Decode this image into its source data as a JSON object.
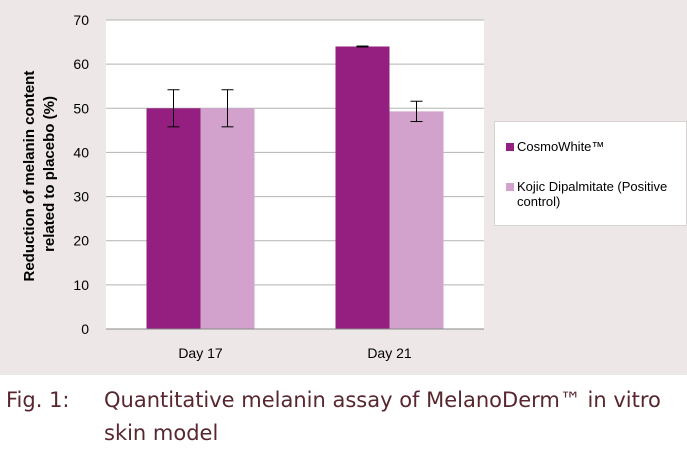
{
  "chart_data": {
    "type": "bar",
    "categories": [
      "Day 17",
      "Day 21"
    ],
    "series": [
      {
        "name": "CosmoWhite™",
        "color": "#951e81",
        "values": [
          50,
          64
        ],
        "error": [
          4.2,
          0.1
        ]
      },
      {
        "name": "Kojic Dipalmitate (Positive control)",
        "color": "#d2a2cd",
        "values": [
          50,
          49.3
        ],
        "error": [
          4.2,
          2.3
        ]
      }
    ],
    "ylabel_lines": [
      "Reduction of melanin content",
      "related to placebo (%)"
    ],
    "ylim": [
      0,
      70
    ],
    "yticks": [
      0,
      10,
      20,
      30,
      40,
      50,
      60,
      70
    ],
    "grid": true,
    "legend_position": "right"
  },
  "legend": {
    "items": [
      {
        "label": "CosmoWhite™",
        "color": "#951e81"
      },
      {
        "label": "Kojic Dipalmitate (Positive control)",
        "color": "#d2a2cd"
      }
    ]
  },
  "caption": {
    "number": "Fig. 1:",
    "text": "Quantitative melanin assay of MelanoDerm™ in vitro skin model"
  },
  "colors": {
    "panel_background": "#ede8e7",
    "caption_text": "#58262f"
  }
}
